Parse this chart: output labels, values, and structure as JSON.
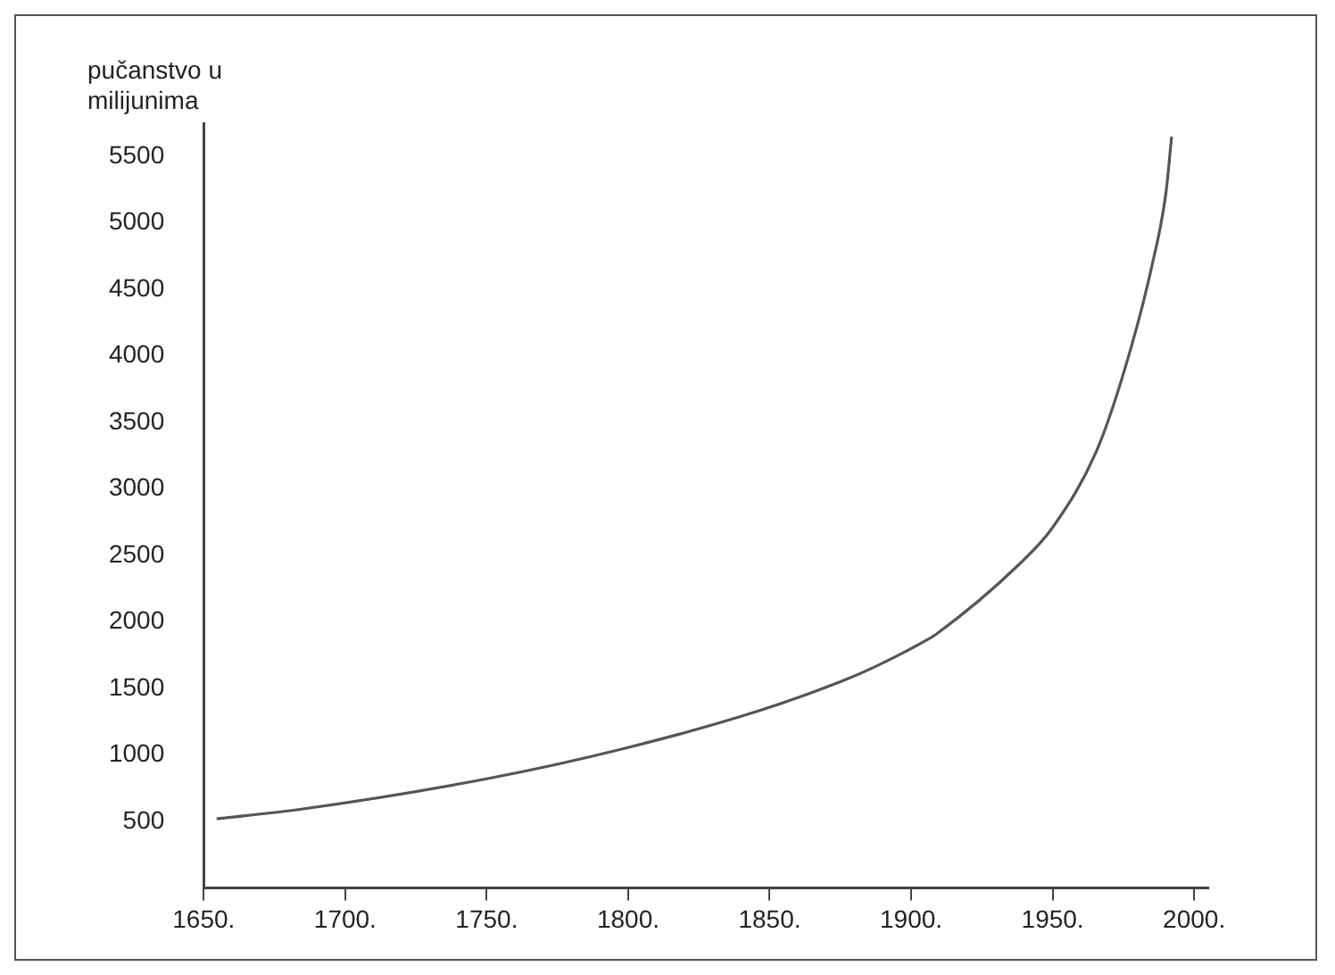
{
  "chart_data": {
    "type": "line",
    "ylabel": "pučanstvo u milijunima",
    "x": [
      1655,
      1684,
      1750,
      1799,
      1846,
      1875,
      1887,
      1906,
      1909,
      1938,
      1950,
      1966,
      1977,
      1985,
      1990,
      1992
    ],
    "series": [
      {
        "color": "#555555",
        "values": [
          520,
          590,
          820,
          1050,
          1330,
          1550,
          1660,
          1870,
          1910,
          2430,
          2710,
          3310,
          4010,
          4670,
          5220,
          5640
        ]
      }
    ],
    "xlim": [
      1650,
      2005
    ],
    "ylim": [
      0,
      5750
    ],
    "xticks": [
      {
        "value": 1650,
        "label": "1650."
      },
      {
        "value": 1700,
        "label": "1700."
      },
      {
        "value": 1750,
        "label": "1750."
      },
      {
        "value": 1800,
        "label": "1800."
      },
      {
        "value": 1850,
        "label": "1850."
      },
      {
        "value": 1900,
        "label": "1900."
      },
      {
        "value": 1950,
        "label": "1950."
      },
      {
        "value": 2000,
        "label": "2000."
      }
    ],
    "yticks": [
      500,
      1000,
      1500,
      2000,
      2500,
      3000,
      3500,
      4000,
      4500,
      5000,
      5500
    ],
    "grid": false,
    "legend": false,
    "marker": "none",
    "line_style": "solid"
  }
}
